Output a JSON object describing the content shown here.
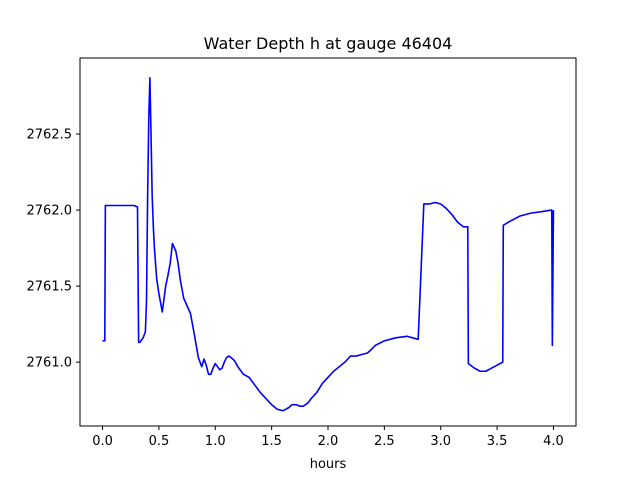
{
  "chart_data": {
    "type": "line",
    "title": "Water Depth h at gauge 46404",
    "xlabel": "hours",
    "ylabel": "",
    "xlim": [
      -0.2,
      4.2
    ],
    "ylim": [
      2760.58,
      2763.0
    ],
    "grid": false,
    "xticks": [
      {
        "value": 0.0,
        "label": "0.0"
      },
      {
        "value": 0.5,
        "label": "0.5"
      },
      {
        "value": 1.0,
        "label": "1.0"
      },
      {
        "value": 1.5,
        "label": "1.5"
      },
      {
        "value": 2.0,
        "label": "2.0"
      },
      {
        "value": 2.5,
        "label": "2.5"
      },
      {
        "value": 3.0,
        "label": "3.0"
      },
      {
        "value": 3.5,
        "label": "3.5"
      },
      {
        "value": 4.0,
        "label": "4.0"
      }
    ],
    "yticks": [
      {
        "value": 2761.0,
        "label": "2761.0"
      },
      {
        "value": 2761.5,
        "label": "2761.5"
      },
      {
        "value": 2762.0,
        "label": "2762.0"
      },
      {
        "value": 2762.5,
        "label": "2762.5"
      }
    ],
    "series": [
      {
        "color": "#0000ff",
        "x": [
          0.0,
          0.02,
          0.025,
          0.1,
          0.2,
          0.28,
          0.31,
          0.32,
          0.33,
          0.36,
          0.38,
          0.39,
          0.4,
          0.41,
          0.42,
          0.43,
          0.44,
          0.45,
          0.46,
          0.48,
          0.5,
          0.53,
          0.56,
          0.58,
          0.6,
          0.62,
          0.65,
          0.67,
          0.69,
          0.72,
          0.75,
          0.78,
          0.81,
          0.85,
          0.88,
          0.9,
          0.92,
          0.94,
          0.96,
          0.98,
          1.0,
          1.02,
          1.04,
          1.06,
          1.08,
          1.1,
          1.12,
          1.14,
          1.17,
          1.2,
          1.22,
          1.25,
          1.3,
          1.35,
          1.4,
          1.45,
          1.5,
          1.55,
          1.6,
          1.65,
          1.68,
          1.72,
          1.75,
          1.78,
          1.8,
          1.82,
          1.85,
          1.9,
          1.95,
          2.0,
          2.05,
          2.1,
          2.15,
          2.2,
          2.25,
          2.3,
          2.35,
          2.38,
          2.42,
          2.5,
          2.6,
          2.7,
          2.75,
          2.8,
          2.85,
          2.855,
          2.9,
          2.95,
          3.0,
          3.05,
          3.1,
          3.15,
          3.2,
          3.24,
          3.245,
          3.3,
          3.35,
          3.4,
          3.45,
          3.5,
          3.55,
          3.555,
          3.6,
          3.65,
          3.7,
          3.8,
          3.9,
          3.98,
          3.985,
          3.99,
          4.0
        ],
        "y": [
          2761.14,
          2761.14,
          2762.03,
          2762.03,
          2762.03,
          2762.03,
          2762.02,
          2761.13,
          2761.13,
          2761.16,
          2761.2,
          2761.4,
          2762.1,
          2762.6,
          2762.87,
          2762.5,
          2762.1,
          2761.9,
          2761.75,
          2761.55,
          2761.45,
          2761.33,
          2761.5,
          2761.57,
          2761.65,
          2761.78,
          2761.73,
          2761.65,
          2761.54,
          2761.42,
          2761.37,
          2761.32,
          2761.2,
          2761.03,
          2760.97,
          2761.02,
          2760.98,
          2760.92,
          2760.92,
          2760.96,
          2760.99,
          2760.97,
          2760.95,
          2760.96,
          2761.0,
          2761.03,
          2761.04,
          2761.03,
          2761.01,
          2760.97,
          2760.95,
          2760.92,
          2760.9,
          2760.85,
          2760.8,
          2760.76,
          2760.72,
          2760.69,
          2760.68,
          2760.7,
          2760.72,
          2760.72,
          2760.71,
          2760.71,
          2760.72,
          2760.73,
          2760.76,
          2760.8,
          2760.86,
          2760.9,
          2760.94,
          2760.97,
          2761.0,
          2761.04,
          2761.04,
          2761.05,
          2761.06,
          2761.08,
          2761.11,
          2761.14,
          2761.16,
          2761.17,
          2761.16,
          2761.15,
          2762.04,
          2762.04,
          2762.04,
          2762.05,
          2762.04,
          2762.01,
          2761.97,
          2761.92,
          2761.89,
          2761.89,
          2760.99,
          2760.96,
          2760.94,
          2760.94,
          2760.96,
          2760.98,
          2761.0,
          2761.9,
          2761.92,
          2761.94,
          2761.96,
          2761.98,
          2761.99,
          2762.0,
          2762.0,
          2761.11,
          2762.0
        ]
      }
    ]
  }
}
